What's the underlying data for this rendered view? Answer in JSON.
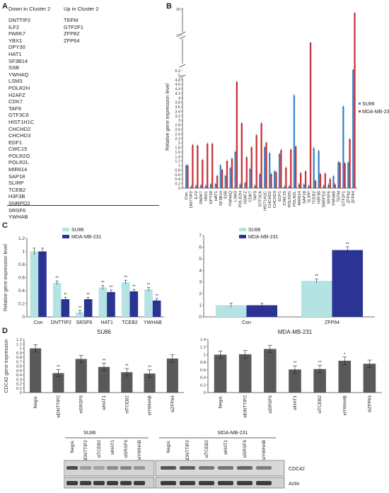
{
  "panel_labels": {
    "a": "A",
    "b": "B",
    "c": "C",
    "d": "D"
  },
  "panelA": {
    "down_header": "Down in Cluster 2",
    "up_header": "Up in Cluster 2",
    "down_genes": [
      "DNTTIP2",
      "ILF2",
      "PARK7",
      "YBX1",
      "DPY30",
      "HAT1",
      "SF3B14",
      "SSB",
      "YWHAQ",
      "LSM3",
      "POLR2H",
      "H2AFZ",
      "CDK7",
      "TAF9",
      "GTF3C6",
      "HIST1H1C",
      "CHCHD2",
      "CHCHD3",
      "EDF1",
      "CWC15",
      "POLR2G",
      "POLR2L",
      "MIR614",
      "SAP18",
      "SLIRP",
      "TCEB2",
      "H3F3B",
      "SNRPD2",
      "SRSF6",
      "YWHAB"
    ],
    "up_genes": [
      "TEFM",
      "GTF2F1",
      "ZFP82",
      "ZFP64"
    ]
  },
  "chart_data": [
    {
      "id": "B",
      "type": "bar",
      "ylabel": "Relative gene expression level",
      "y_broken_axis": true,
      "y_ticks": [
        0,
        0.2,
        0.4,
        0.6,
        0.8,
        1,
        1.2,
        1.4,
        1.6,
        1.8,
        2,
        2.2,
        2.4,
        2.6,
        2.8,
        3,
        3.2,
        3.4,
        3.6,
        3.8,
        4,
        4.2,
        4.4,
        4.6,
        4.8,
        5,
        5.2,
        10,
        20
      ],
      "categories": [
        "Con.",
        "DNTTIP2",
        "ILF2",
        "PARK7",
        "YBX1",
        "DPY30",
        "HAT1",
        "SF3B14",
        "SSB",
        "YWHAQ",
        "LSM3",
        "POLR2H",
        "H2AFZ",
        "CDK7",
        "TAF9",
        "GTF3C6",
        "HIST1H1C",
        "CHCHD2",
        "CHCHD3",
        "EDF1",
        "CWC15",
        "POLR2G",
        "POLR2L",
        "MIR614",
        "SAP18",
        "SLIRP",
        "TCEB2",
        "H3F3B",
        "SNRPD2",
        "SRSF6",
        "YWHAB",
        "TEFM",
        "GTF2F1",
        "ZFP82",
        "ZFP64"
      ],
      "legend_position": "right",
      "series": [
        {
          "name": "SU86",
          "color": "#3a86c8",
          "values": [
            1.0,
            0.06,
            0.1,
            0.12,
            0.1,
            0.16,
            0.18,
            1.0,
            0.54,
            0.88,
            1.6,
            0.16,
            0.22,
            0.84,
            0.1,
            0.6,
            1.8,
            1.54,
            0.74,
            1.5,
            0.06,
            0.08,
            4.1,
            0.16,
            0.16,
            0.1,
            1.76,
            1.64,
            0.1,
            0.14,
            0.52,
            1.14,
            3.6,
            1.12,
            5.3
          ]
        },
        {
          "name": "MDA-MB-231",
          "color": "#c8343a",
          "values": [
            1.0,
            1.9,
            1.88,
            1.24,
            1.96,
            1.96,
            0.54,
            0.8,
            1.2,
            1.3,
            4.7,
            2.86,
            1.36,
            1.8,
            2.34,
            2.86,
            2.0,
            0.62,
            0.7,
            1.68,
            0.9,
            1.7,
            1.84,
            0.66,
            0.74,
            9.0,
            0.32,
            0.62,
            0.64,
            0.4,
            0.16,
            1.12,
            1.1,
            2.16,
            18.5
          ]
        }
      ]
    },
    {
      "id": "C-left",
      "type": "bar",
      "ylabel": "Relative gene expression level",
      "ylim": [
        0,
        1.2
      ],
      "y_ticks": [
        0,
        0.2,
        0.4,
        0.6,
        0.8,
        1,
        1.2
      ],
      "categories": [
        "Con",
        "DNTTIP2",
        "SRSF6",
        "HAT1",
        "TCEB2",
        "YWHAB"
      ],
      "significance": [
        "",
        "**",
        "**",
        "**",
        "**",
        "**"
      ],
      "legend_position": "top",
      "series": [
        {
          "name": "SU86",
          "color": "#b5e3e3",
          "values": [
            1.0,
            0.52,
            0.07,
            0.45,
            0.53,
            0.42
          ]
        },
        {
          "name": "MDA-MB-231",
          "color": "#2b3393",
          "values": [
            1.0,
            0.27,
            0.27,
            0.38,
            0.39,
            0.25
          ]
        }
      ]
    },
    {
      "id": "C-right",
      "type": "bar",
      "ylim": [
        0,
        7
      ],
      "y_ticks": [
        0,
        1,
        2,
        3,
        4,
        5,
        6,
        7
      ],
      "categories": [
        "Con",
        "ZFP64"
      ],
      "significance": [
        "",
        "**"
      ],
      "legend_position": "top",
      "series": [
        {
          "name": "SU86",
          "color": "#b5e3e3",
          "values": [
            1.0,
            3.1
          ]
        },
        {
          "name": "MDA-MB-231",
          "color": "#2b3393",
          "values": [
            1.0,
            5.75
          ]
        }
      ]
    },
    {
      "id": "D-left",
      "type": "bar",
      "title": "SU86",
      "ylabel": "CDC42 gene expression",
      "ylim": [
        0,
        1.2
      ],
      "y_ticks": [
        0,
        0.1,
        0.2,
        0.3,
        0.4,
        0.5,
        0.6,
        0.7,
        0.8,
        0.9,
        1,
        1.1,
        1.2
      ],
      "categories": [
        "Negsi.",
        "siDNTTIP2",
        "siSRSF6",
        "siHAT1",
        "siTCEB2",
        "siYWHAB",
        "siZFP64"
      ],
      "significance": [
        "",
        "**",
        "",
        "**",
        "**",
        "**",
        ""
      ],
      "color": "#595959",
      "values": [
        1.0,
        0.44,
        0.76,
        0.58,
        0.46,
        0.43,
        0.77
      ]
    },
    {
      "id": "D-right",
      "type": "bar",
      "title": "MDA-MB-231",
      "ylim": [
        0,
        1.4
      ],
      "y_ticks": [
        0,
        0.2,
        0.4,
        0.6,
        0.8,
        1,
        1.2,
        1.4
      ],
      "categories": [
        "Negsi.",
        "siDNTTIP2",
        "siSRSF6",
        "siHAT1",
        "siTCEB2",
        "siYWHAB",
        "siZFP64"
      ],
      "significance": [
        "",
        "",
        "",
        "**",
        "**",
        "*",
        ""
      ],
      "color": "#595959",
      "values": [
        1.0,
        1.01,
        1.15,
        0.61,
        0.62,
        0.84,
        0.76
      ]
    }
  ],
  "blot": {
    "group_left": "SU86",
    "group_right": "MDA-MB-231",
    "lanes_left": [
      "Negsi.",
      "siDNTTIP2",
      "siTCEB2",
      "siHAT1",
      "siSRSF6",
      "siYWHAB"
    ],
    "lanes_right": [
      "Negsi.",
      "siDNTTIP2",
      "siTCEB2",
      "siHAT1",
      "siSRSF6",
      "siYWHAB"
    ],
    "row_labels": [
      "CDC42",
      "Actin"
    ]
  }
}
